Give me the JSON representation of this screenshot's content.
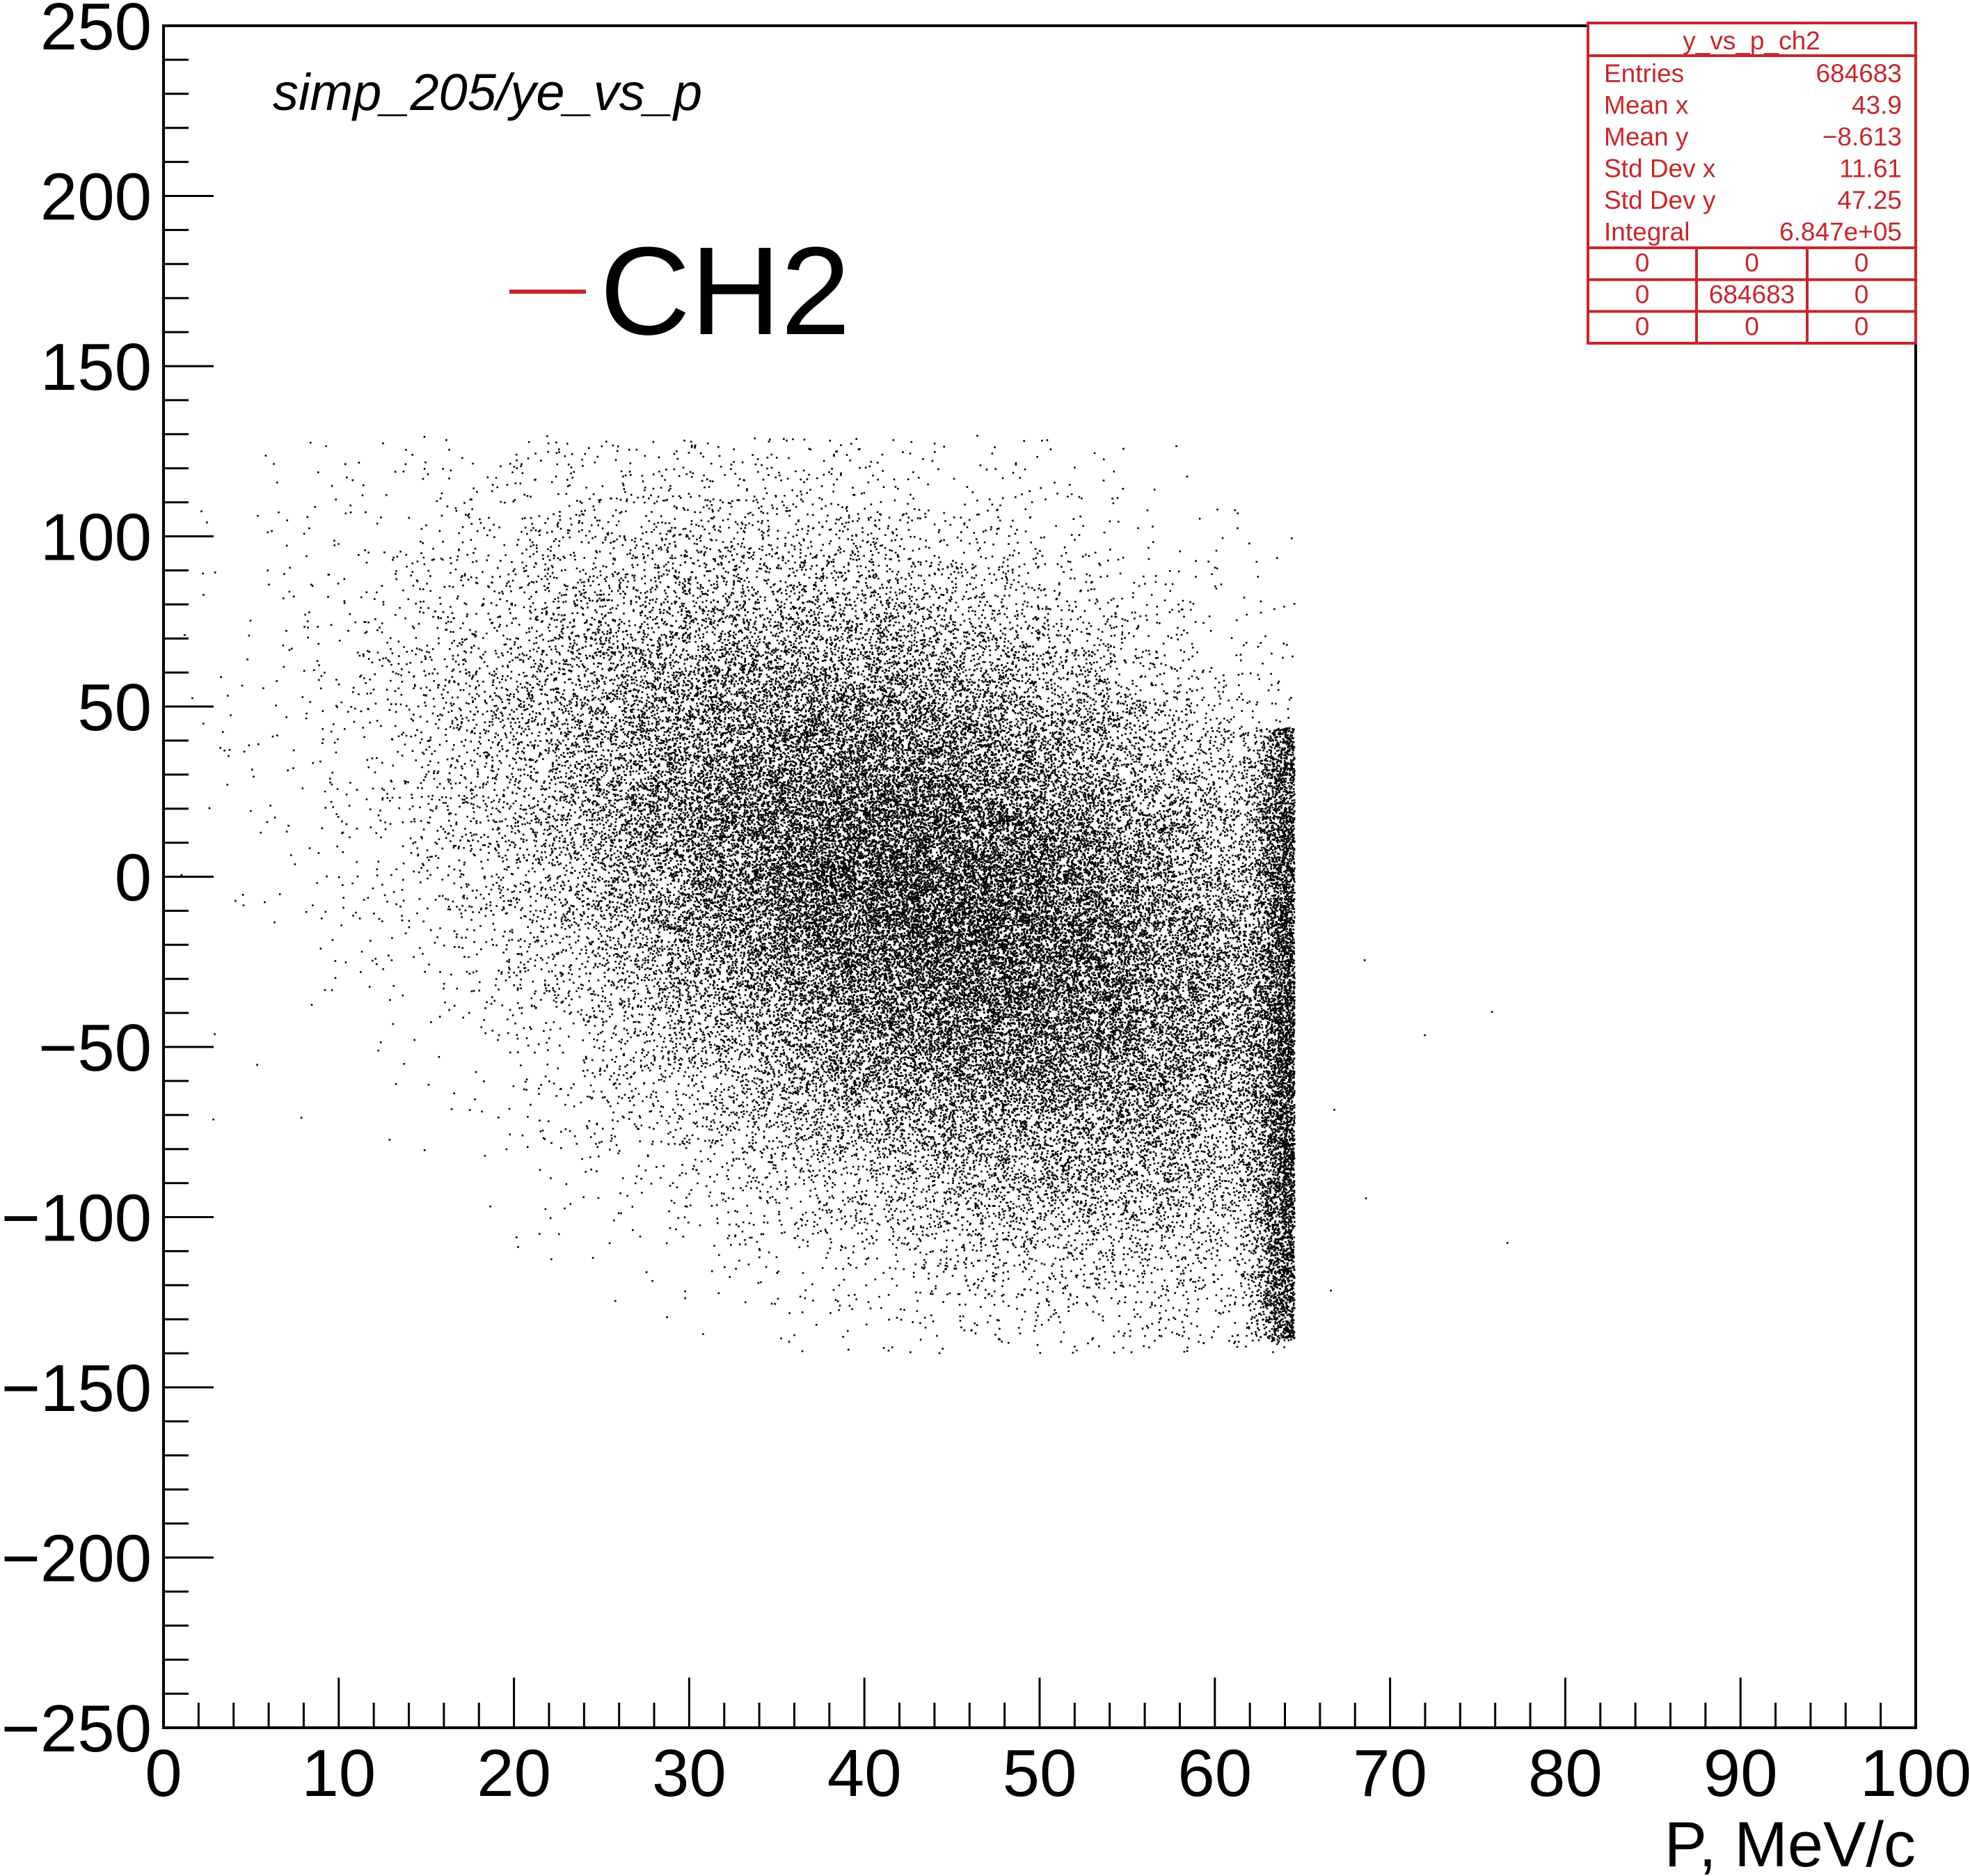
{
  "chart_data": {
    "type": "scatter",
    "title": "simp_205/ye_vs_p",
    "xlabel": "P, MeV/c",
    "ylabel": "",
    "xlim": [
      0,
      100
    ],
    "ylim": [
      -250,
      250
    ],
    "x_ticks": [
      "0",
      "10",
      "20",
      "30",
      "40",
      "50",
      "60",
      "70",
      "80",
      "90",
      "100"
    ],
    "y_ticks": [
      "−250",
      "−200",
      "−150",
      "−100",
      "−50",
      "0",
      "50",
      "100",
      "150",
      "200",
      "250"
    ],
    "legend": {
      "label": "CH2",
      "color": "#c8262b",
      "placement": "top-left"
    },
    "marker_color": "#000000",
    "stats_box": {
      "name": "y_vs_p_ch2",
      "placement": "top-right",
      "color": "#c8262b",
      "rows": [
        {
          "label": "Entries",
          "value": "684683"
        },
        {
          "label": "Mean x",
          "value": "43.9"
        },
        {
          "label": "Mean y",
          "value": "−8.613"
        },
        {
          "label": "Std Dev x",
          "value": "11.61"
        },
        {
          "label": "Std Dev y",
          "value": "47.25"
        },
        {
          "label": "Integral",
          "value": "6.847e+05"
        }
      ],
      "grid": [
        [
          "0",
          "0",
          "0"
        ],
        [
          "0",
          "684683",
          "0"
        ],
        [
          "0",
          "0",
          "0"
        ]
      ]
    },
    "distribution": {
      "entries": 684683,
      "mean_x": 43.9,
      "mean_y": -8.613,
      "std_x": 11.61,
      "std_y": 47.25,
      "x_max_cutoff": 64.5,
      "y_range": [
        -140,
        130
      ]
    }
  }
}
